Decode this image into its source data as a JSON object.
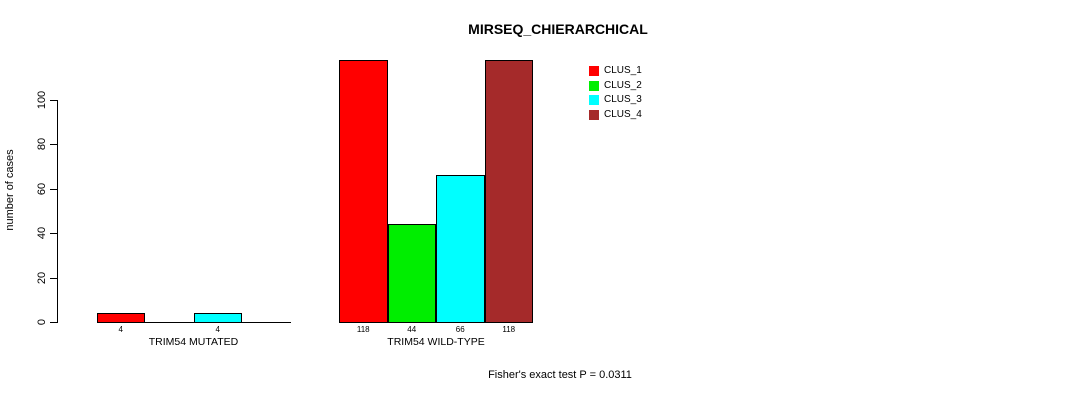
{
  "chart_data": {
    "type": "bar",
    "title": "MIRSEQ_CHIERARCHICAL",
    "ylabel": "number of cases",
    "xlabel": "",
    "yticks": [
      0,
      20,
      40,
      60,
      80,
      100
    ],
    "ylim": [
      0,
      118
    ],
    "grid": false,
    "legend_position": "top-right-inside",
    "categories": [
      "TRIM54 MUTATED",
      "TRIM54 WILD-TYPE"
    ],
    "series": [
      {
        "name": "CLUS_1",
        "color": "#ff0000",
        "values": [
          4,
          118
        ]
      },
      {
        "name": "CLUS_2",
        "color": "#00ee00",
        "values": [
          0,
          44
        ]
      },
      {
        "name": "CLUS_3",
        "color": "#00ffff",
        "values": [
          4,
          66
        ]
      },
      {
        "name": "CLUS_4",
        "color": "#a52a2a",
        "values": [
          0,
          118
        ]
      }
    ],
    "bar_labels_shown_for_nonzero_only": true,
    "annotation": "Fisher's exact test P = 0.0311"
  }
}
